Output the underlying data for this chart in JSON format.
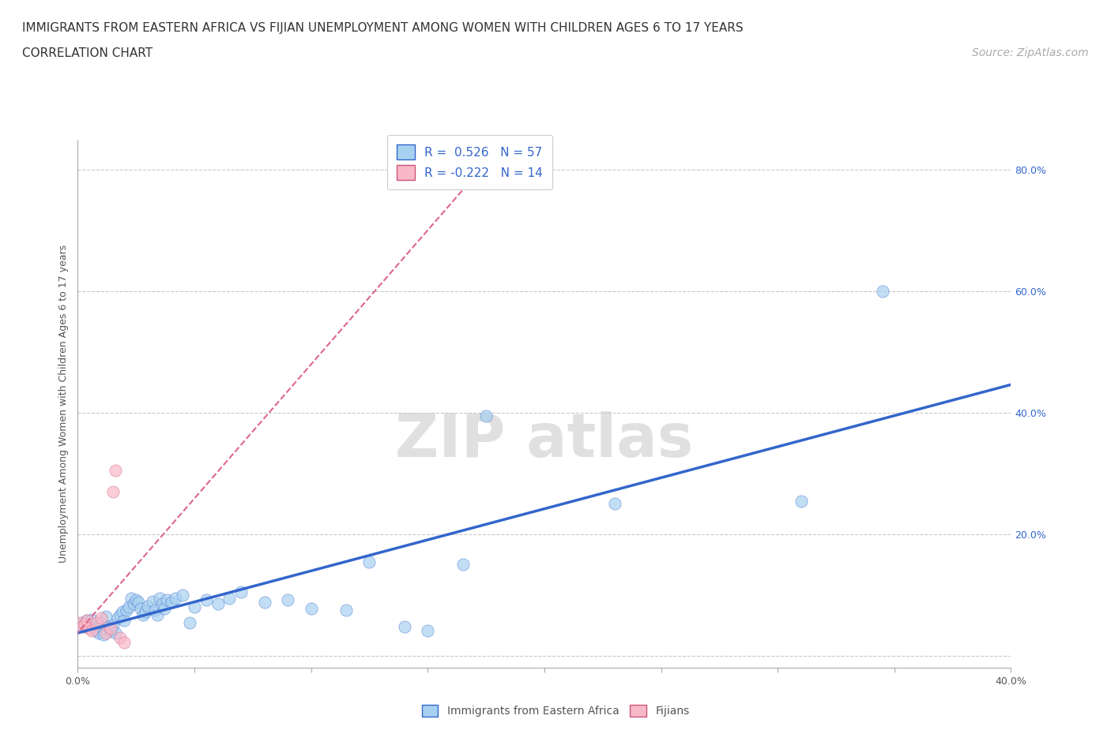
{
  "title_line1": "IMMIGRANTS FROM EASTERN AFRICA VS FIJIAN UNEMPLOYMENT AMONG WOMEN WITH CHILDREN AGES 6 TO 17 YEARS",
  "title_line2": "CORRELATION CHART",
  "source_text": "Source: ZipAtlas.com",
  "ylabel": "Unemployment Among Women with Children Ages 6 to 17 years",
  "xlim": [
    0.0,
    0.4
  ],
  "ylim": [
    -0.02,
    0.85
  ],
  "x_ticks": [
    0.0,
    0.05,
    0.1,
    0.15,
    0.2,
    0.25,
    0.3,
    0.35,
    0.4
  ],
  "y_ticks": [
    0.0,
    0.2,
    0.4,
    0.6,
    0.8
  ],
  "blue_color": "#A8D0F0",
  "pink_color": "#F8B8C8",
  "blue_line_color": "#3366CC",
  "pink_line_color": "#DD6688",
  "grid_color": "#BBBBBB",
  "background_color": "#FFFFFF",
  "blue_scatter": [
    [
      0.001,
      0.05
    ],
    [
      0.002,
      0.055
    ],
    [
      0.003,
      0.048
    ],
    [
      0.004,
      0.058
    ],
    [
      0.005,
      0.052
    ],
    [
      0.006,
      0.06
    ],
    [
      0.007,
      0.045
    ],
    [
      0.008,
      0.042
    ],
    [
      0.009,
      0.038
    ],
    [
      0.01,
      0.055
    ],
    [
      0.011,
      0.035
    ],
    [
      0.012,
      0.065
    ],
    [
      0.013,
      0.048
    ],
    [
      0.014,
      0.042
    ],
    [
      0.015,
      0.05
    ],
    [
      0.016,
      0.038
    ],
    [
      0.017,
      0.062
    ],
    [
      0.018,
      0.068
    ],
    [
      0.019,
      0.072
    ],
    [
      0.02,
      0.058
    ],
    [
      0.021,
      0.075
    ],
    [
      0.022,
      0.08
    ],
    [
      0.023,
      0.095
    ],
    [
      0.024,
      0.085
    ],
    [
      0.025,
      0.092
    ],
    [
      0.026,
      0.088
    ],
    [
      0.027,
      0.078
    ],
    [
      0.028,
      0.068
    ],
    [
      0.029,
      0.072
    ],
    [
      0.03,
      0.082
    ],
    [
      0.032,
      0.09
    ],
    [
      0.033,
      0.075
    ],
    [
      0.034,
      0.068
    ],
    [
      0.035,
      0.095
    ],
    [
      0.036,
      0.085
    ],
    [
      0.037,
      0.078
    ],
    [
      0.038,
      0.092
    ],
    [
      0.04,
      0.088
    ],
    [
      0.042,
      0.095
    ],
    [
      0.045,
      0.1
    ],
    [
      0.048,
      0.055
    ],
    [
      0.05,
      0.08
    ],
    [
      0.055,
      0.092
    ],
    [
      0.06,
      0.085
    ],
    [
      0.065,
      0.095
    ],
    [
      0.07,
      0.105
    ],
    [
      0.08,
      0.088
    ],
    [
      0.09,
      0.092
    ],
    [
      0.1,
      0.078
    ],
    [
      0.115,
      0.075
    ],
    [
      0.125,
      0.155
    ],
    [
      0.14,
      0.048
    ],
    [
      0.15,
      0.042
    ],
    [
      0.165,
      0.15
    ],
    [
      0.175,
      0.395
    ],
    [
      0.23,
      0.25
    ],
    [
      0.31,
      0.255
    ],
    [
      0.345,
      0.6
    ]
  ],
  "pink_scatter": [
    [
      0.001,
      0.055
    ],
    [
      0.002,
      0.048
    ],
    [
      0.003,
      0.052
    ],
    [
      0.004,
      0.058
    ],
    [
      0.005,
      0.045
    ],
    [
      0.006,
      0.042
    ],
    [
      0.008,
      0.055
    ],
    [
      0.01,
      0.062
    ],
    [
      0.012,
      0.038
    ],
    [
      0.014,
      0.045
    ],
    [
      0.015,
      0.27
    ],
    [
      0.016,
      0.305
    ],
    [
      0.018,
      0.03
    ],
    [
      0.02,
      0.022
    ]
  ],
  "title_fontsize": 11,
  "subtitle_fontsize": 11,
  "source_fontsize": 10,
  "axis_label_fontsize": 9,
  "tick_fontsize": 9,
  "legend_fontsize": 11,
  "watermark_text": "ZIPatlas"
}
